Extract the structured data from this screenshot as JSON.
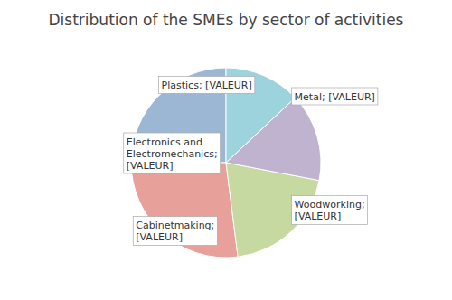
{
  "chart_data": {
    "type": "pie",
    "title": "Distribution of the SMEs by sector of activities",
    "values": [
      25,
      27,
      20,
      15,
      13
    ],
    "colors": [
      "#9BB7D4",
      "#E8A09A",
      "#C5D9A0",
      "#C0B3D0",
      "#9DD3DC"
    ],
    "annotations": [
      "Metal; [VALEUR]",
      "Woodworking;\n[VALEUR]",
      "Cabinetmaking;\n[VALEUR]",
      "Electronics and\nElectromechanics;\n[VALEUR]",
      "Plastics; [VALEUR]"
    ]
  }
}
